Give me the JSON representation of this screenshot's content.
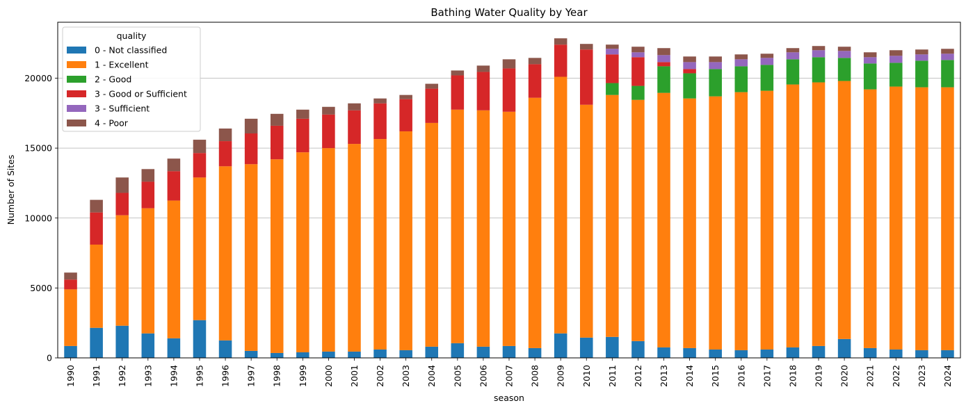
{
  "chart_data": {
    "type": "bar",
    "stacked": true,
    "title": "Bathing Water Quality by Year",
    "xlabel": "season",
    "ylabel": "Number of Sites",
    "ylim": [
      0,
      24000
    ],
    "yticks": [
      0,
      5000,
      10000,
      15000,
      20000
    ],
    "grid": "horizontal",
    "legend": {
      "title": "quality",
      "placement": "top-left"
    },
    "categories": [
      "1990",
      "1991",
      "1992",
      "1993",
      "1994",
      "1995",
      "1996",
      "1997",
      "1998",
      "1999",
      "2000",
      "2001",
      "2002",
      "2003",
      "2004",
      "2005",
      "2006",
      "2007",
      "2008",
      "2009",
      "2010",
      "2011",
      "2012",
      "2013",
      "2014",
      "2015",
      "2016",
      "2017",
      "2018",
      "2019",
      "2020",
      "2021",
      "2022",
      "2023",
      "2024"
    ],
    "series": [
      {
        "name": "0 - Not classified",
        "color": "#1f77b4",
        "values": [
          850,
          2150,
          2300,
          1750,
          1400,
          2700,
          1250,
          500,
          350,
          400,
          450,
          450,
          600,
          550,
          800,
          1050,
          800,
          850,
          700,
          1750,
          1450,
          1500,
          1200,
          750,
          700,
          600,
          550,
          600,
          750,
          850,
          1350,
          700,
          600,
          550,
          550
        ]
      },
      {
        "name": "1 - Excellent",
        "color": "#ff7f0e",
        "values": [
          4050,
          5950,
          7900,
          8950,
          9850,
          10200,
          12450,
          13350,
          13850,
          14300,
          14550,
          14850,
          15050,
          15650,
          16000,
          16700,
          16900,
          16750,
          17900,
          18350,
          16650,
          17300,
          17250,
          18200,
          17850,
          18100,
          18450,
          18500,
          18800,
          18850,
          18450,
          18500,
          18800,
          18800,
          18800
        ]
      },
      {
        "name": "2 - Good",
        "color": "#2ca02c",
        "values": [
          0,
          0,
          0,
          0,
          0,
          0,
          0,
          0,
          0,
          0,
          0,
          0,
          0,
          0,
          0,
          0,
          0,
          0,
          0,
          0,
          0,
          850,
          1000,
          1900,
          1800,
          1950,
          1850,
          1850,
          1800,
          1800,
          1650,
          1850,
          1700,
          1900,
          1950
        ]
      },
      {
        "name": "3 - Good or Sufficient",
        "color": "#d62728",
        "values": [
          700,
          2300,
          1600,
          1900,
          2100,
          1750,
          1800,
          2200,
          2400,
          2400,
          2400,
          2400,
          2550,
          2300,
          2450,
          2450,
          2750,
          3100,
          2400,
          2300,
          3950,
          2050,
          2050,
          300,
          300,
          0,
          0,
          0,
          0,
          0,
          0,
          0,
          0,
          0,
          0
        ]
      },
      {
        "name": "3 - Sufficient",
        "color": "#9467bd",
        "values": [
          0,
          0,
          0,
          0,
          0,
          0,
          0,
          0,
          0,
          0,
          0,
          0,
          0,
          0,
          0,
          0,
          0,
          0,
          0,
          0,
          0,
          400,
          350,
          500,
          500,
          500,
          500,
          500,
          500,
          500,
          500,
          450,
          500,
          450,
          450
        ]
      },
      {
        "name": "4 - Poor",
        "color": "#8c564b",
        "values": [
          500,
          900,
          1100,
          900,
          900,
          950,
          900,
          1050,
          850,
          650,
          550,
          500,
          350,
          300,
          350,
          350,
          450,
          650,
          450,
          450,
          400,
          300,
          400,
          500,
          400,
          400,
          350,
          300,
          300,
          300,
          300,
          350,
          400,
          350,
          350
        ]
      }
    ]
  }
}
